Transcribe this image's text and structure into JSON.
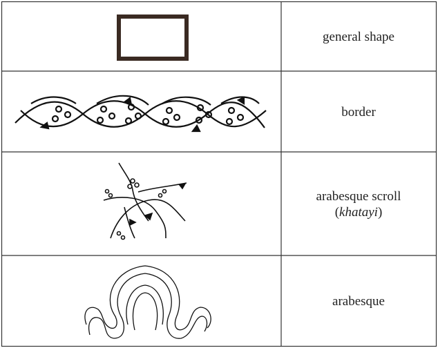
{
  "table": {
    "rows": [
      {
        "label": "general shape"
      },
      {
        "label": "border"
      },
      {
        "label": "arabesque scroll",
        "note_parts": [
          "(",
          "khatayi",
          ")"
        ]
      },
      {
        "label": "arabesque"
      }
    ]
  }
}
